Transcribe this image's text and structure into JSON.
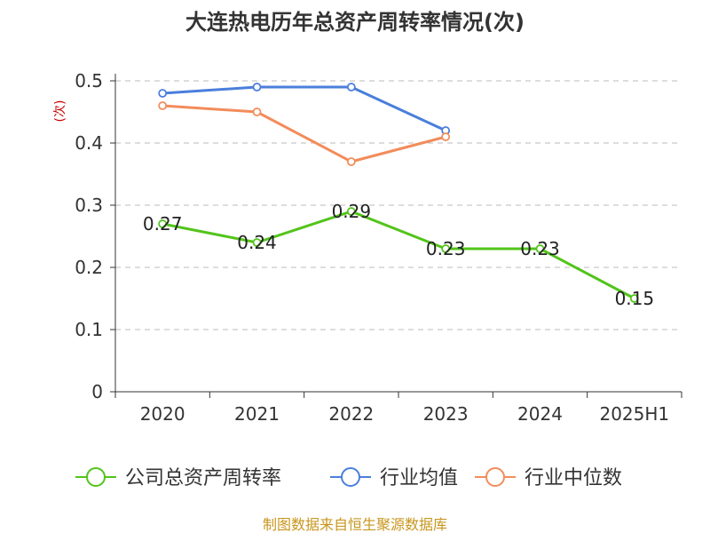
{
  "chart_data": {
    "type": "line",
    "title": "大连热电历年总资产周转率情况(次)",
    "ylabel": "(次)",
    "categories": [
      "2020",
      "2021",
      "2022",
      "2023",
      "2024",
      "2025H1"
    ],
    "ylim": [
      0,
      0.5
    ],
    "yticks": [
      "0",
      "0.1",
      "0.2",
      "0.3",
      "0.4",
      "0.5"
    ],
    "grid": true,
    "legend_position": "bottom",
    "series": [
      {
        "name": "公司总资产周转率",
        "color": "#52c41a",
        "values": [
          0.27,
          0.24,
          0.29,
          0.23,
          0.23,
          0.15
        ],
        "labels": [
          "0.27",
          "0.24",
          "0.29",
          "0.23",
          "0.23",
          "0.15"
        ]
      },
      {
        "name": "行业均值",
        "color": "#4a7fdb",
        "values": [
          0.48,
          0.49,
          0.49,
          0.42,
          null,
          null
        ]
      },
      {
        "name": "行业中位数",
        "color": "#f28c5a",
        "values": [
          0.46,
          0.45,
          0.37,
          0.41,
          null,
          null
        ]
      }
    ]
  },
  "source": "制图数据来自恒生聚源数据库"
}
